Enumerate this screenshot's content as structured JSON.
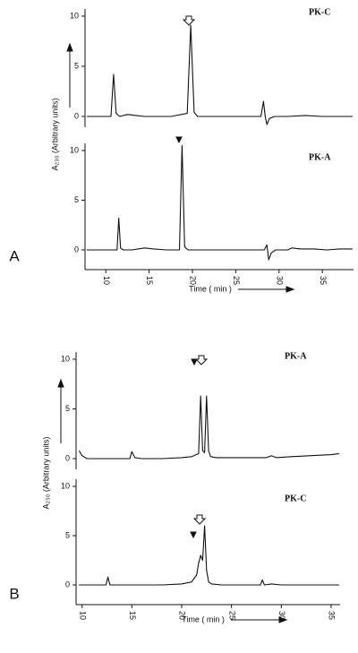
{
  "chart_data": [
    {
      "type": "line",
      "title": "PK-C",
      "ylabel": "A₂₃₀ (Arbitrary units)",
      "x": [
        7.8,
        9,
        10,
        10.6,
        10.9,
        11.2,
        11.6,
        12.5,
        13.5,
        14.5,
        16,
        17.5,
        19.4,
        19.8,
        20.2,
        20.6,
        22,
        24,
        26,
        27.9,
        28.2,
        28.4,
        28.6,
        28.9,
        29.5,
        31,
        33,
        35,
        37,
        38.5
      ],
      "values": [
        0,
        0,
        0,
        0,
        4.2,
        0.3,
        0,
        0.2,
        0.1,
        0,
        0,
        0,
        0.3,
        9.1,
        0.4,
        0,
        0,
        0,
        0,
        0,
        1.5,
        0,
        -0.8,
        -0.2,
        0,
        0,
        0.1,
        0,
        0,
        0
      ],
      "color": "#111111",
      "xlim": [
        7.6,
        38.6
      ],
      "ylim": [
        0,
        10
      ],
      "yticks": [
        0,
        5,
        10
      ]
    },
    {
      "type": "line",
      "title": "PK-A",
      "panel_label": "A",
      "xlabel": "Time ( min )",
      "x": [
        7.8,
        9,
        11,
        11.3,
        11.5,
        11.7,
        12,
        13,
        14.5,
        15.5,
        17,
        18.5,
        18.8,
        19.1,
        19.5,
        21,
        24,
        26,
        28.3,
        28.6,
        28.8,
        29.1,
        29.6,
        31,
        31.5,
        32.5,
        34,
        35.5,
        37,
        38.5
      ],
      "values": [
        0,
        0,
        0,
        0,
        3.2,
        0.2,
        0,
        0,
        0.2,
        0.1,
        0,
        0,
        10.5,
        0.3,
        0,
        0,
        0,
        0,
        0,
        0.5,
        -1.0,
        -0.3,
        0,
        0,
        0.2,
        0.1,
        0.1,
        0,
        0.1,
        0.1
      ],
      "color": "#111111",
      "xlim": [
        7.6,
        38.6
      ],
      "ylim": [
        0,
        10
      ],
      "yticks": [
        0,
        5,
        10
      ],
      "xticks": [
        10,
        15,
        20,
        25,
        30,
        35
      ]
    },
    {
      "type": "line",
      "title": "PK-A",
      "ylabel": "A₂₃₀ (Arbitrary units)",
      "x": [
        9.7,
        10,
        10.5,
        11.5,
        13,
        14.8,
        15,
        15.3,
        16,
        18,
        20,
        21,
        21.7,
        21.9,
        22.1,
        22.3,
        22.5,
        22.7,
        22.9,
        23.5,
        25,
        27,
        28.5,
        29,
        29.5,
        31,
        33,
        35,
        35.8
      ],
      "values": [
        0.8,
        0.3,
        0,
        0,
        0,
        0,
        0.7,
        0.1,
        0,
        0,
        0.1,
        0.2,
        0.5,
        6.3,
        0.8,
        0.6,
        6.3,
        0.8,
        0.2,
        0.1,
        0.1,
        0.1,
        0.1,
        0.3,
        0.1,
        0.2,
        0.3,
        0.4,
        0.5
      ],
      "color": "#111111",
      "xlim": [
        9.4,
        35.9
      ],
      "ylim": [
        0,
        10
      ],
      "yticks": [
        0,
        5,
        10
      ]
    },
    {
      "type": "line",
      "title": "PK-C",
      "panel_label": "B",
      "xlabel": "Time ( min )",
      "x": [
        9.7,
        11,
        12.4,
        12.6,
        12.8,
        14,
        16,
        18,
        20,
        21,
        21.5,
        21.7,
        21.9,
        22.1,
        22.3,
        22.5,
        22.7,
        23,
        24,
        26,
        27.9,
        28.1,
        28.3,
        29,
        30,
        32,
        34,
        35.8
      ],
      "values": [
        0,
        0,
        0,
        0.8,
        0,
        0,
        0,
        0,
        0.1,
        0.3,
        1.0,
        2.2,
        3.0,
        2.5,
        6.0,
        1.5,
        0.3,
        0.1,
        0,
        0,
        0,
        0.5,
        0,
        0.1,
        0,
        0,
        0,
        0
      ],
      "color": "#111111",
      "xlim": [
        9.4,
        35.9
      ],
      "ylim": [
        0,
        10
      ],
      "yticks": [
        0,
        5,
        10
      ],
      "xticks": [
        10,
        15,
        20,
        25,
        30,
        35
      ]
    }
  ]
}
